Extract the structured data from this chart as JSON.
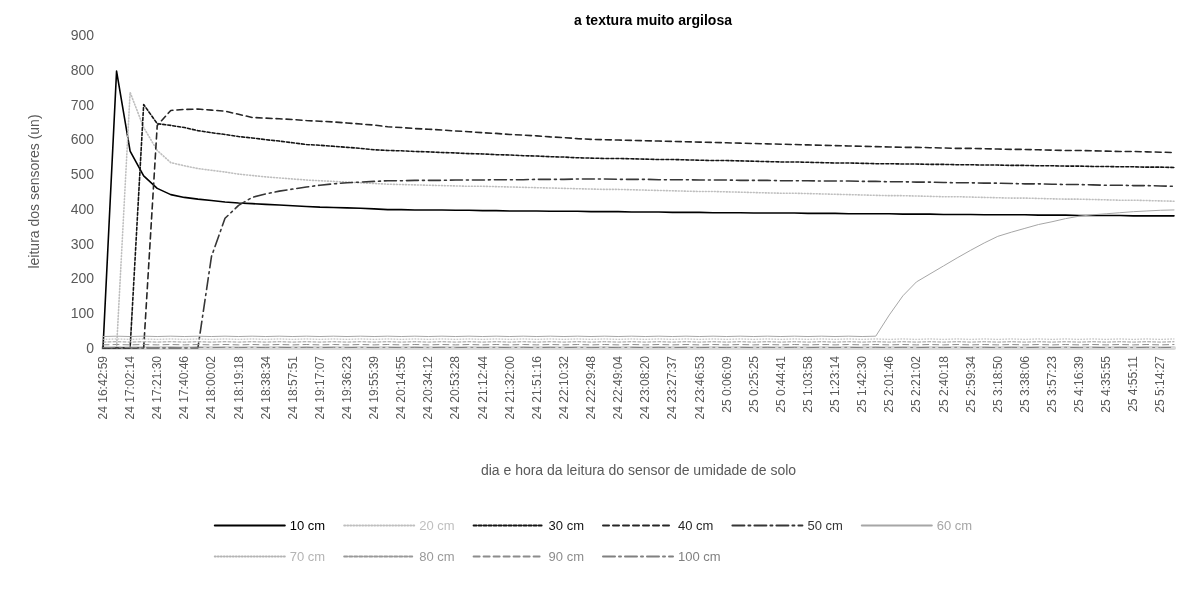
{
  "chart_data": {
    "type": "line",
    "title": "a textura muito argilosa",
    "xlabel": "dia e hora da leitura do sensor de umidade de solo",
    "ylabel": "leitura dos sensores (un)",
    "categories": [
      "24 16:42:59",
      null,
      "24 17:02:14",
      null,
      "24 17:21:30",
      null,
      "24 17:40:46",
      null,
      "24 18:00:02",
      null,
      "24 18:19:18",
      null,
      "24 18:38:34",
      null,
      "24 18:57:51",
      null,
      "24 19:17:07",
      null,
      "24 19:36:23",
      null,
      "24 19:55:39",
      null,
      "24 20:14:55",
      null,
      "24 20:34:12",
      null,
      "24 20:53:28",
      null,
      "24 21:12:44",
      null,
      "24 21:32:00",
      null,
      "24 21:51:16",
      null,
      "24 22:10:32",
      null,
      "24 22:29:48",
      null,
      "24 22:49:04",
      null,
      "24 23:08:20",
      null,
      "24 23:27:37",
      null,
      "24 23:46:53",
      null,
      "25 0:06:09",
      null,
      "25 0:25:25",
      null,
      "25 0:44:41",
      null,
      "25 1:03:58",
      null,
      "25 1:23:14",
      null,
      "25 1:42:30",
      null,
      "25 2:01:46",
      null,
      "25 2:21:02",
      null,
      "25 2:40:18",
      null,
      "25 2:59:34",
      null,
      "25 3:18:50",
      null,
      "25 3:38:06",
      null,
      "25 3:57:23",
      null,
      "25 4:16:39",
      null,
      "25 4:35:55",
      null,
      "25 4:55:11",
      null,
      "25 5:14:27",
      null
    ],
    "ylim": [
      0,
      900
    ],
    "yticks": [
      0,
      100,
      200,
      300,
      400,
      500,
      600,
      700,
      800,
      900
    ],
    "marker": "none",
    "legend": "bottom",
    "series": [
      {
        "name": "10 cm",
        "color": "#000000",
        "line_style": "solid",
        "values": [
          0,
          796,
          566,
          495,
          459,
          441,
          433,
          428,
          424,
          420,
          417,
          415,
          413,
          411,
          409,
          407,
          405,
          404,
          403,
          402,
          400,
          398,
          398,
          397,
          397,
          397,
          396,
          396,
          395,
          395,
          394,
          394,
          394,
          393,
          393,
          393,
          392,
          392,
          392,
          391,
          391,
          391,
          390,
          390,
          390,
          389,
          389,
          389,
          388,
          388,
          388,
          388,
          387,
          387,
          387,
          386,
          386,
          386,
          386,
          385,
          385,
          385,
          384,
          384,
          384,
          383,
          383,
          383,
          383,
          382,
          382,
          382,
          381,
          381,
          381,
          381,
          380,
          380,
          380,
          380
        ]
      },
      {
        "name": "20 cm",
        "color": "#bfbfbf",
        "line_style": "dotted",
        "values": [
          0,
          0,
          735,
          634,
          568,
          533,
          524,
          516,
          511,
          506,
          500,
          496,
          492,
          489,
          486,
          483,
          481,
          479,
          477,
          475,
          473,
          471,
          470,
          469,
          468,
          467,
          466,
          465,
          465,
          464,
          463,
          462,
          461,
          460,
          459,
          458,
          457,
          456,
          456,
          455,
          454,
          453,
          452,
          451,
          450,
          450,
          449,
          448,
          447,
          446,
          445,
          445,
          444,
          443,
          442,
          441,
          440,
          439,
          438,
          438,
          437,
          436,
          435,
          435,
          434,
          433,
          432,
          431,
          431,
          430,
          429,
          428,
          428,
          427,
          426,
          425,
          425,
          424,
          423,
          422
        ]
      },
      {
        "name": "30 cm",
        "color": "#141414",
        "line_style": "dashed",
        "values": [
          0,
          0,
          0,
          700,
          645,
          640,
          634,
          625,
          619,
          614,
          608,
          604,
          599,
          595,
          590,
          585,
          583,
          580,
          577,
          574,
          570,
          568,
          567,
          565,
          564,
          562,
          561,
          559,
          558,
          556,
          555,
          553,
          552,
          550,
          549,
          547,
          546,
          545,
          545,
          544,
          543,
          542,
          542,
          541,
          540,
          539,
          539,
          538,
          537,
          536,
          535,
          535,
          534,
          533,
          532,
          532,
          531,
          530,
          530,
          529,
          529,
          528,
          528,
          527,
          527,
          526,
          526,
          525,
          525,
          524,
          524,
          523,
          523,
          522,
          522,
          521,
          521,
          520,
          520,
          519
        ]
      },
      {
        "name": "40 cm",
        "color": "#262626",
        "line_style": "dashed",
        "values": [
          0,
          0,
          0,
          0,
          640,
          683,
          686,
          687,
          684,
          681,
          672,
          663,
          661,
          659,
          657,
          654,
          652,
          650,
          647,
          644,
          641,
          636,
          634,
          631,
          629,
          627,
          624,
          622,
          619,
          617,
          614,
          612,
          610,
          607,
          605,
          602,
          600,
          599,
          598,
          597,
          596,
          595,
          594,
          593,
          592,
          591,
          590,
          589,
          588,
          587,
          586,
          585,
          584,
          583,
          582,
          581,
          580,
          579,
          578,
          577,
          577,
          576,
          575,
          574,
          574,
          573,
          572,
          571,
          571,
          570,
          569,
          568,
          568,
          567,
          566,
          565,
          565,
          564,
          563,
          562
        ]
      },
      {
        "name": "50 cm",
        "color": "#363636",
        "line_style": "dashed",
        "values": [
          0,
          0,
          0,
          0,
          0,
          0,
          0,
          0,
          263,
          373,
          410,
          433,
          443,
          451,
          457,
          463,
          468,
          472,
          475,
          477,
          479,
          481,
          481,
          482,
          482,
          482,
          483,
          483,
          483,
          484,
          484,
          484,
          485,
          485,
          485,
          486,
          486,
          486,
          485,
          485,
          485,
          484,
          484,
          484,
          483,
          483,
          483,
          482,
          482,
          482,
          481,
          481,
          481,
          480,
          480,
          480,
          479,
          479,
          478,
          478,
          477,
          477,
          476,
          475,
          475,
          474,
          474,
          473,
          472,
          472,
          471,
          470,
          470,
          469,
          468,
          468,
          467,
          467,
          466,
          465
        ]
      },
      {
        "name": "60 cm",
        "color": "#a6a6a6",
        "line_style": "solid",
        "values": [
          33,
          34,
          33,
          34,
          33,
          34,
          33,
          34,
          33,
          34,
          33,
          34,
          33,
          34,
          33,
          34,
          33,
          34,
          33,
          34,
          33,
          34,
          33,
          34,
          33,
          34,
          33,
          34,
          33,
          34,
          33,
          34,
          33,
          34,
          33,
          34,
          33,
          34,
          33,
          34,
          33,
          34,
          33,
          34,
          33,
          34,
          33,
          34,
          33,
          34,
          33,
          34,
          33,
          34,
          33,
          34,
          33,
          34,
          95,
          150,
          190,
          213,
          236,
          259,
          281,
          302,
          321,
          333,
          344,
          355,
          363,
          372,
          379,
          383,
          386,
          389,
          392,
          394,
          396,
          397
        ]
      },
      {
        "name": "70 cm",
        "color": "#b4b4b4",
        "line_style": "dotted",
        "values": [
          25,
          26,
          25,
          26,
          25,
          26,
          25,
          26,
          25,
          26,
          25,
          26,
          25,
          26,
          25,
          26,
          25,
          26,
          25,
          26,
          25,
          26,
          25,
          26,
          25,
          26,
          25,
          26,
          25,
          26,
          25,
          26,
          25,
          26,
          25,
          26,
          25,
          26,
          25,
          26,
          25,
          26,
          25,
          26,
          25,
          26,
          25,
          26,
          25,
          26,
          25,
          26,
          25,
          26,
          25,
          26,
          25,
          26,
          25,
          26,
          25,
          26,
          25,
          26,
          25,
          26,
          25,
          26,
          25,
          26,
          25,
          26,
          25,
          26,
          25,
          26,
          25,
          26,
          25,
          26
        ]
      },
      {
        "name": "80 cm",
        "color": "#999999",
        "line_style": "dashed",
        "values": [
          17,
          18,
          17,
          18,
          17,
          18,
          17,
          18,
          17,
          18,
          17,
          18,
          17,
          18,
          17,
          18,
          17,
          18,
          17,
          18,
          17,
          18,
          17,
          18,
          17,
          18,
          17,
          18,
          17,
          18,
          17,
          18,
          17,
          18,
          17,
          18,
          17,
          18,
          17,
          18,
          17,
          18,
          17,
          18,
          17,
          18,
          17,
          18,
          17,
          18,
          17,
          18,
          17,
          18,
          17,
          18,
          17,
          18,
          17,
          18,
          17,
          18,
          17,
          18,
          17,
          18,
          17,
          18,
          17,
          18,
          17,
          18,
          17,
          18,
          17,
          18,
          17,
          18,
          17,
          18
        ]
      },
      {
        "name": "90 cm",
        "color": "#8c8c8c",
        "line_style": "dashed",
        "values": [
          9,
          10,
          9,
          10,
          9,
          10,
          9,
          10,
          9,
          10,
          9,
          10,
          9,
          10,
          9,
          10,
          9,
          10,
          9,
          10,
          9,
          10,
          9,
          10,
          9,
          10,
          9,
          10,
          9,
          10,
          9,
          10,
          9,
          10,
          9,
          10,
          9,
          10,
          9,
          10,
          9,
          10,
          9,
          10,
          9,
          10,
          9,
          10,
          9,
          10,
          9,
          10,
          9,
          10,
          9,
          10,
          9,
          10,
          9,
          10,
          9,
          10,
          9,
          10,
          9,
          10,
          9,
          10,
          9,
          10,
          9,
          10,
          9,
          10,
          9,
          10,
          9,
          10,
          9,
          10
        ]
      },
      {
        "name": "100 cm",
        "color": "#808080",
        "line_style": "dashed",
        "values": [
          1,
          2,
          1,
          2,
          1,
          2,
          1,
          2,
          1,
          2,
          1,
          2,
          1,
          2,
          1,
          2,
          1,
          2,
          1,
          2,
          1,
          2,
          1,
          2,
          1,
          2,
          1,
          2,
          1,
          2,
          1,
          2,
          1,
          2,
          1,
          2,
          1,
          2,
          1,
          2,
          1,
          2,
          1,
          2,
          1,
          2,
          1,
          2,
          1,
          2,
          1,
          2,
          1,
          2,
          1,
          2,
          1,
          2,
          1,
          2,
          1,
          2,
          1,
          2,
          1,
          2,
          1,
          2,
          1,
          2,
          1,
          2,
          1,
          2,
          1,
          2,
          1,
          2,
          1,
          2
        ]
      }
    ]
  }
}
